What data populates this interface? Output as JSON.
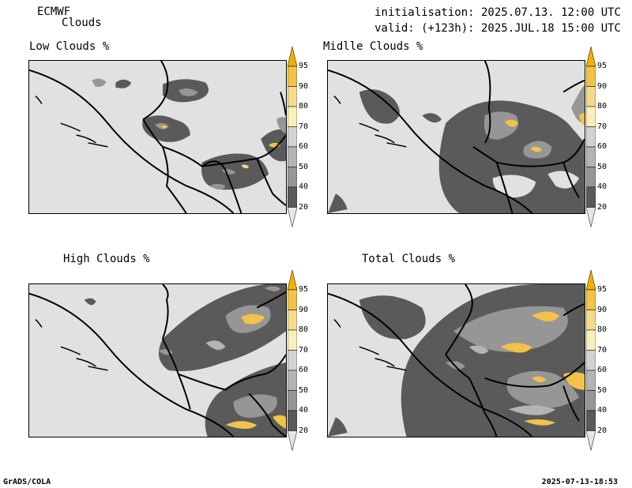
{
  "header": {
    "model": "ECMWF",
    "product": "Clouds",
    "initialisation": "initialisation: 2025.07.13. 12:00 UTC",
    "valid": "valid: (+123h): 2025.JUL.18 15:00 UTC"
  },
  "panels": [
    {
      "title": "Low Clouds %"
    },
    {
      "title": "Midlle Clouds %"
    },
    {
      "title": "High Clouds %"
    },
    {
      "title": "Total Clouds %"
    }
  ],
  "colorbar": {
    "ticks": [
      "95",
      "90",
      "80",
      "70",
      "60",
      "50",
      "40",
      "20"
    ],
    "colors": [
      "#f0b000",
      "#f2c24a",
      "#f5d98c",
      "#f8f0b8",
      "#d2d2d2",
      "#b4b4b4",
      "#969696",
      "#5a5a5a",
      "#e6e6e6"
    ]
  },
  "footer": {
    "left": "GrADS/COLA",
    "right": "2025-07-13-18:53"
  },
  "colors": {
    "land": "#e1e1e1",
    "cloud_dark": "#5a5a5a",
    "cloud_mid": "#969696",
    "cloud_light": "#b4b4b4",
    "cloud_yellow": "#f2c24a",
    "border": "#000000"
  }
}
